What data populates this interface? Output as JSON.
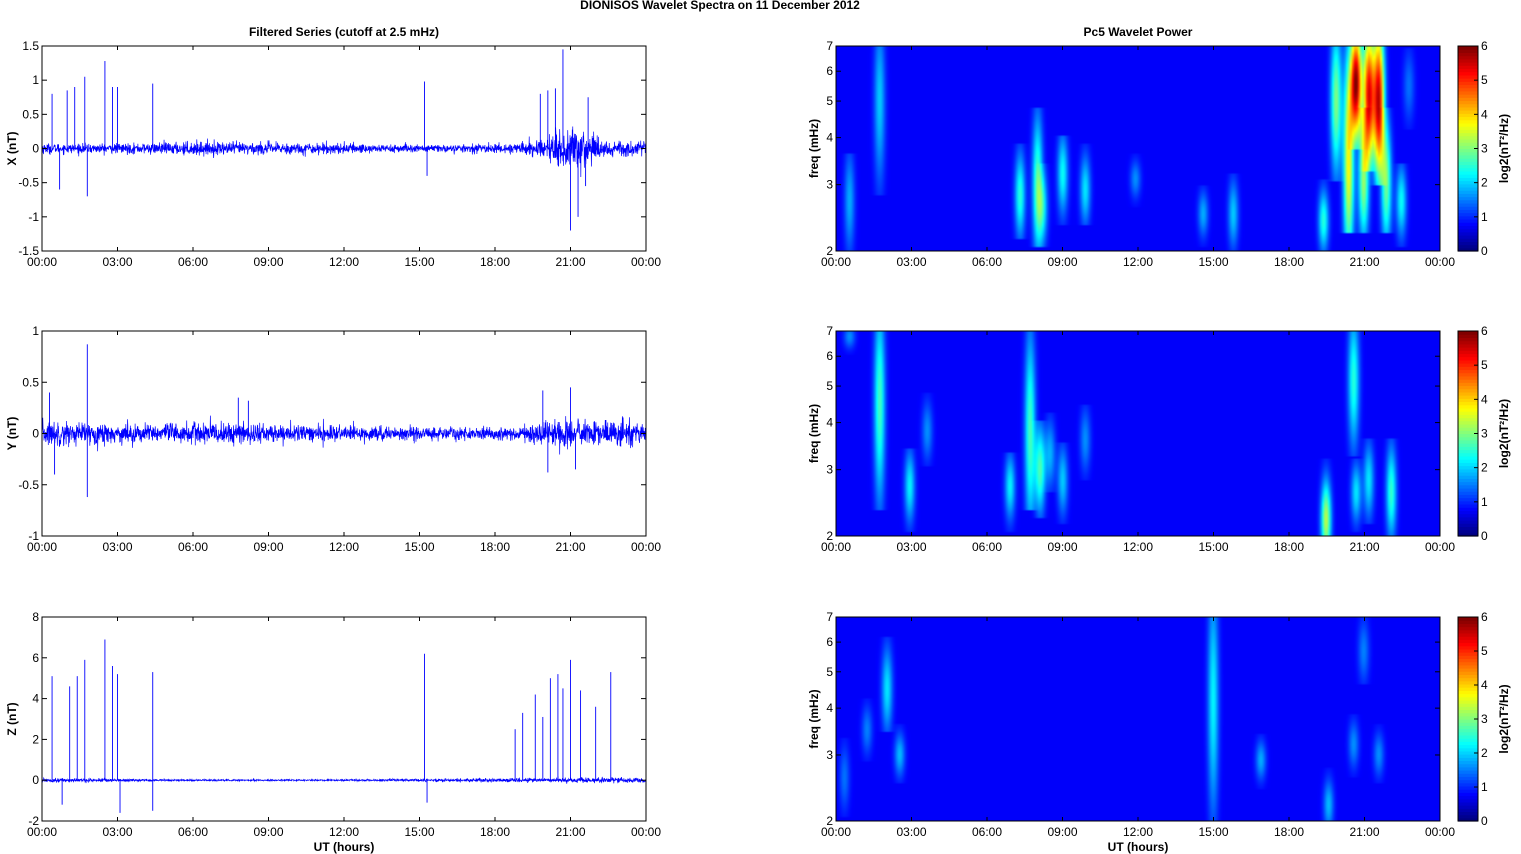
{
  "figure_title": "DIONISOS Wavelet Spectra on 11 December  2012",
  "colors": {
    "trace": "#0000ff",
    "background": "#00008f"
  },
  "chart_data": [
    {
      "type": "line",
      "title": "Filtered Series (cutoff at 2.5 mHz)",
      "xlabel": "",
      "ylabel": "X (nT)",
      "x_ticks": [
        "00:00",
        "03:00",
        "06:00",
        "09:00",
        "12:00",
        "15:00",
        "18:00",
        "21:00",
        "00:00"
      ],
      "xlim_hours": [
        0,
        24
      ],
      "ylim": [
        -1.5,
        1.5
      ],
      "y_ticks": [
        "-1.5",
        "-1",
        "-0.5",
        "0",
        "0.5",
        "1",
        "1.5"
      ],
      "noise_profile": [
        [
          0,
          0.07
        ],
        [
          1,
          0.06
        ],
        [
          2,
          0.06
        ],
        [
          4,
          0.07
        ],
        [
          6,
          0.09
        ],
        [
          9,
          0.08
        ],
        [
          12,
          0.07
        ],
        [
          15,
          0.05
        ],
        [
          17,
          0.05
        ],
        [
          18,
          0.06
        ],
        [
          19,
          0.08
        ],
        [
          20,
          0.12
        ],
        [
          21,
          0.35
        ],
        [
          22,
          0.17
        ],
        [
          23,
          0.1
        ],
        [
          24,
          0.09
        ]
      ],
      "spikes": [
        [
          0.4,
          0.8
        ],
        [
          0.7,
          -0.6
        ],
        [
          1.0,
          0.85
        ],
        [
          1.3,
          0.9
        ],
        [
          1.7,
          1.05
        ],
        [
          1.8,
          -0.7
        ],
        [
          2.5,
          1.28
        ],
        [
          2.8,
          0.9
        ],
        [
          3.0,
          0.9
        ],
        [
          4.4,
          0.95
        ],
        [
          15.2,
          0.98
        ],
        [
          15.3,
          -0.4
        ],
        [
          19.8,
          0.8
        ],
        [
          20.1,
          0.85
        ],
        [
          20.4,
          0.88
        ],
        [
          20.7,
          1.45
        ],
        [
          21.0,
          -1.2
        ],
        [
          21.3,
          -1.0
        ],
        [
          21.6,
          -0.55
        ],
        [
          21.7,
          0.75
        ]
      ]
    },
    {
      "type": "line",
      "ylabel": "Y (nT)",
      "xlabel": "",
      "x_ticks": [
        "00:00",
        "03:00",
        "06:00",
        "09:00",
        "12:00",
        "15:00",
        "18:00",
        "21:00",
        "00:00"
      ],
      "xlim_hours": [
        0,
        24
      ],
      "ylim": [
        -1,
        1
      ],
      "y_ticks": [
        "-1",
        "-0.5",
        "0",
        "0.5",
        "1"
      ],
      "noise_profile": [
        [
          0,
          0.12
        ],
        [
          1,
          0.1
        ],
        [
          2,
          0.09
        ],
        [
          4,
          0.08
        ],
        [
          6,
          0.1
        ],
        [
          8,
          0.09
        ],
        [
          10,
          0.08
        ],
        [
          12,
          0.06
        ],
        [
          15,
          0.06
        ],
        [
          18,
          0.05
        ],
        [
          19,
          0.06
        ],
        [
          20,
          0.12
        ],
        [
          21,
          0.13
        ],
        [
          22,
          0.1
        ],
        [
          23,
          0.11
        ],
        [
          24,
          0.1
        ]
      ],
      "spikes": [
        [
          0.3,
          0.4
        ],
        [
          0.5,
          -0.4
        ],
        [
          1.8,
          0.87
        ],
        [
          1.8,
          -0.62
        ],
        [
          7.8,
          0.35
        ],
        [
          8.2,
          0.32
        ],
        [
          19.9,
          0.42
        ],
        [
          20.1,
          -0.38
        ],
        [
          21.0,
          0.45
        ],
        [
          21.2,
          -0.35
        ]
      ]
    },
    {
      "type": "line",
      "ylabel": "Z (nT)",
      "xlabel": "UT (hours)",
      "x_ticks": [
        "00:00",
        "03:00",
        "06:00",
        "09:00",
        "12:00",
        "15:00",
        "18:00",
        "21:00",
        "00:00"
      ],
      "xlim_hours": [
        0,
        24
      ],
      "ylim": [
        -2,
        8
      ],
      "y_ticks": [
        "-2",
        "0",
        "2",
        "4",
        "6",
        "8"
      ],
      "noise_profile": [
        [
          0,
          0.1
        ],
        [
          1,
          0.08
        ],
        [
          2,
          0.08
        ],
        [
          4,
          0.06
        ],
        [
          5,
          0.04
        ],
        [
          10,
          0.03
        ],
        [
          15,
          0.05
        ],
        [
          16,
          0.07
        ],
        [
          18,
          0.08
        ],
        [
          20,
          0.1
        ],
        [
          22,
          0.12
        ],
        [
          24,
          0.12
        ]
      ],
      "spikes": [
        [
          0.4,
          5.1
        ],
        [
          0.8,
          -1.2
        ],
        [
          1.1,
          4.6
        ],
        [
          1.4,
          5.1
        ],
        [
          1.7,
          5.9
        ],
        [
          2.5,
          6.9
        ],
        [
          2.8,
          5.6
        ],
        [
          3.0,
          5.2
        ],
        [
          3.1,
          -1.6
        ],
        [
          4.4,
          5.3
        ],
        [
          4.4,
          -1.5
        ],
        [
          15.2,
          6.2
        ],
        [
          15.3,
          -1.1
        ],
        [
          18.8,
          2.5
        ],
        [
          19.1,
          3.3
        ],
        [
          19.6,
          4.2
        ],
        [
          19.9,
          3.1
        ],
        [
          20.2,
          5.0
        ],
        [
          20.5,
          5.2
        ],
        [
          20.7,
          4.5
        ],
        [
          21.0,
          5.9
        ],
        [
          21.4,
          4.4
        ],
        [
          22.0,
          3.6
        ],
        [
          22.6,
          5.3
        ]
      ]
    },
    {
      "type": "heatmap",
      "title": "Pc5 Wavelet Power",
      "ylabel": "freq (mHz)",
      "xlabel": "",
      "x_ticks": [
        "00:00",
        "03:00",
        "06:00",
        "09:00",
        "12:00",
        "15:00",
        "18:00",
        "21:00",
        "00:00"
      ],
      "y_scale": "log",
      "ylim": [
        2,
        7
      ],
      "y_ticks": [
        "2",
        "3",
        "4",
        "5",
        "6",
        "7"
      ],
      "colorbar": {
        "label": "log2(nT²/Hz)",
        "range": [
          0,
          6
        ],
        "ticks": [
          "0",
          "1",
          "2",
          "3",
          "4",
          "5",
          "6"
        ],
        "colormap": "jet"
      },
      "features": [
        [
          0.5,
          2.7,
          2,
          3.4,
          1.2
        ],
        [
          1.7,
          5.0,
          3,
          7,
          1.4
        ],
        [
          7.3,
          2.8,
          2.3,
          3.6,
          2.0
        ],
        [
          8.0,
          3.0,
          2.2,
          4.5,
          2.3
        ],
        [
          8.2,
          2.6,
          2.2,
          3.2,
          1.5
        ],
        [
          9.0,
          3.2,
          2.5,
          3.8,
          1.8
        ],
        [
          9.9,
          2.9,
          2.5,
          3.6,
          1.6
        ],
        [
          11.9,
          3.1,
          2.8,
          3.4,
          1.0
        ],
        [
          14.6,
          2.5,
          2.2,
          2.8,
          1.2
        ],
        [
          15.8,
          2.5,
          2.1,
          3.0,
          1.4
        ],
        [
          19.4,
          2.4,
          2.1,
          2.9,
          2.0
        ],
        [
          19.9,
          5.0,
          3.3,
          7,
          2.6
        ],
        [
          20.4,
          3.5,
          2.4,
          7,
          3.5
        ],
        [
          20.7,
          5.6,
          4.0,
          7,
          5.8
        ],
        [
          21.0,
          3.1,
          2.4,
          4.5,
          2.8
        ],
        [
          21.2,
          5.2,
          3.5,
          7,
          5.2
        ],
        [
          21.6,
          5.0,
          3.2,
          7,
          5.5
        ],
        [
          21.9,
          3.0,
          2.4,
          4.5,
          2.5
        ],
        [
          22.5,
          2.7,
          2.2,
          3.2,
          1.8
        ],
        [
          22.8,
          5.5,
          4.5,
          6.5,
          0.8
        ]
      ]
    },
    {
      "type": "heatmap",
      "ylabel": "freq (mHz)",
      "xlabel": "",
      "x_ticks": [
        "00:00",
        "03:00",
        "06:00",
        "09:00",
        "12:00",
        "15:00",
        "18:00",
        "21:00",
        "00:00"
      ],
      "y_scale": "log",
      "ylim": [
        2,
        7
      ],
      "y_ticks": [
        "2",
        "3",
        "4",
        "5",
        "6",
        "7"
      ],
      "colorbar": {
        "label": "log2(nT²/Hz)",
        "range": [
          0,
          6
        ],
        "ticks": [
          "0",
          "1",
          "2",
          "3",
          "4",
          "5",
          "6"
        ],
        "colormap": "jet"
      },
      "features": [
        [
          0.5,
          6.8,
          6.5,
          7,
          1.0
        ],
        [
          1.7,
          4.5,
          2.5,
          7,
          2.2
        ],
        [
          2.9,
          2.7,
          2.2,
          3.2,
          1.7
        ],
        [
          3.6,
          3.8,
          3.3,
          4.5,
          1.0
        ],
        [
          6.9,
          2.7,
          2.2,
          3.1,
          1.7
        ],
        [
          7.7,
          3.8,
          2.5,
          7,
          2.2
        ],
        [
          8.1,
          3.0,
          2.4,
          3.8,
          2.2
        ],
        [
          8.5,
          3.3,
          2.8,
          4.0,
          1.2
        ],
        [
          9.0,
          2.8,
          2.3,
          3.3,
          1.4
        ],
        [
          9.9,
          3.6,
          3.0,
          4.2,
          1.0
        ],
        [
          19.5,
          2.2,
          2,
          3.0,
          3.0
        ],
        [
          20.6,
          5.2,
          3.5,
          7,
          2.0
        ],
        [
          20.7,
          2.6,
          2.2,
          3.0,
          1.6
        ],
        [
          21.2,
          2.8,
          2.3,
          3.4,
          1.6
        ],
        [
          22.1,
          2.6,
          2.1,
          3.4,
          2.1
        ]
      ]
    },
    {
      "type": "heatmap",
      "ylabel": "freq (mHz)",
      "xlabel": "UT (hours)",
      "x_ticks": [
        "00:00",
        "03:00",
        "06:00",
        "09:00",
        "12:00",
        "15:00",
        "18:00",
        "21:00",
        "00:00"
      ],
      "y_scale": "log",
      "ylim": [
        2,
        7
      ],
      "y_ticks": [
        "2",
        "3",
        "4",
        "5",
        "6",
        "7"
      ],
      "colorbar": {
        "label": "log2(nT²/Hz)",
        "range": [
          0,
          6
        ],
        "ticks": [
          "0",
          "1",
          "2",
          "3",
          "4",
          "5",
          "6"
        ],
        "colormap": "jet"
      },
      "features": [
        [
          0.3,
          2.6,
          2.2,
          3.1,
          0.8
        ],
        [
          1.2,
          3.5,
          3.1,
          4.0,
          0.9
        ],
        [
          2.0,
          4.5,
          3.7,
          5.8,
          1.6
        ],
        [
          2.5,
          3.0,
          2.7,
          3.4,
          1.3
        ],
        [
          15.0,
          4.2,
          2.1,
          7,
          1.7
        ],
        [
          16.9,
          2.9,
          2.6,
          3.2,
          1.2
        ],
        [
          19.6,
          2.2,
          2,
          2.6,
          1.3
        ],
        [
          20.6,
          3.2,
          2.8,
          3.6,
          1.0
        ],
        [
          21.0,
          5.7,
          5.0,
          7,
          0.9
        ],
        [
          21.6,
          3.0,
          2.7,
          3.4,
          1.0
        ]
      ]
    }
  ]
}
